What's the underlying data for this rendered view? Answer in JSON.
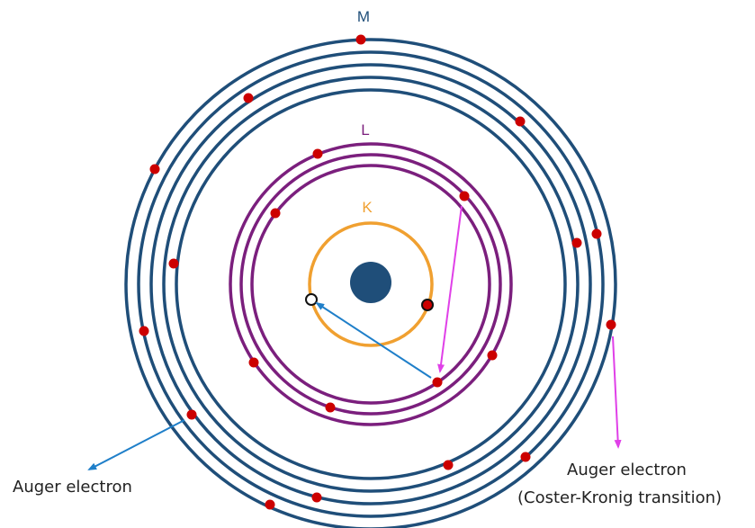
{
  "colors": {
    "m_shell": "#1f4e79",
    "l_shell": "#7b1f7d",
    "k_shell": "#f0a030",
    "nucleus": "#1f4e79",
    "electron": "#cc0000",
    "auger_arrow": "#1f7fc9",
    "coster_kronig_arrow": "#e040e8"
  },
  "shells": {
    "k": {
      "label": "K"
    },
    "l": {
      "label": "L"
    },
    "m": {
      "label": "M"
    }
  },
  "captions": {
    "auger": "Auger electron",
    "coster_kronig_line1": "Auger electron",
    "coster_kronig_line2": "(Coster-Kronig  transition)"
  }
}
